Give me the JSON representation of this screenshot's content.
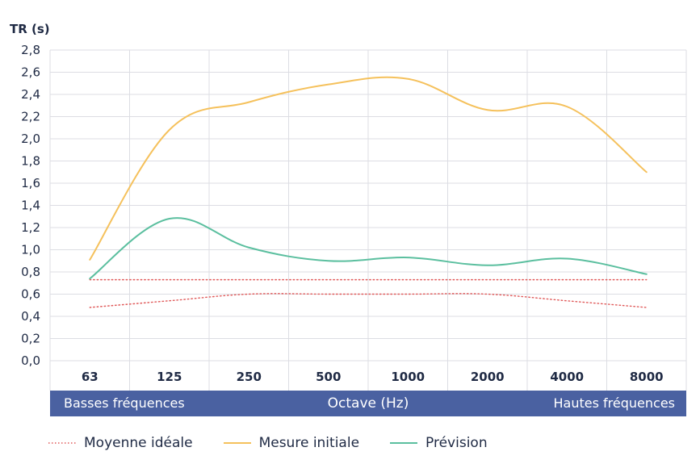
{
  "chart_data": {
    "type": "line",
    "ylabel": "TR (s)",
    "xlabel": "Octave (Hz)",
    "x_band_left": "Basses fréquences",
    "x_band_right": "Hautes fréquences",
    "categories": [
      "63",
      "125",
      "250",
      "500",
      "1000",
      "2000",
      "4000",
      "8000"
    ],
    "ylim": [
      0,
      2.8
    ],
    "yticks": [
      "0,0",
      "0,2",
      "0,4",
      "0,6",
      "0,8",
      "1,0",
      "1,2",
      "1,4",
      "1,6",
      "1,8",
      "2,0",
      "2,2",
      "2,4",
      "2,6",
      "2,8"
    ],
    "grid": true,
    "legend_position": "bottom-left",
    "series": [
      {
        "name": "Moyenne idéale",
        "style": "dotted",
        "color": "#e05a5a",
        "values": [
          0.73,
          0.73,
          0.73,
          0.73,
          0.73,
          0.73,
          0.73,
          0.73
        ]
      },
      {
        "name": "",
        "style": "dotted",
        "color": "#e05a5a",
        "values": [
          0.48,
          0.54,
          0.6,
          0.6,
          0.6,
          0.6,
          0.54,
          0.48
        ]
      },
      {
        "name": "Mesure initiale",
        "style": "solid",
        "color": "#f5c15c",
        "values": [
          0.91,
          2.08,
          2.33,
          2.49,
          2.54,
          2.26,
          2.29,
          1.7
        ]
      },
      {
        "name": "Prévision",
        "style": "solid",
        "color": "#5bbf9f",
        "values": [
          0.74,
          1.28,
          1.02,
          0.9,
          0.93,
          0.86,
          0.92,
          0.78
        ]
      }
    ]
  }
}
